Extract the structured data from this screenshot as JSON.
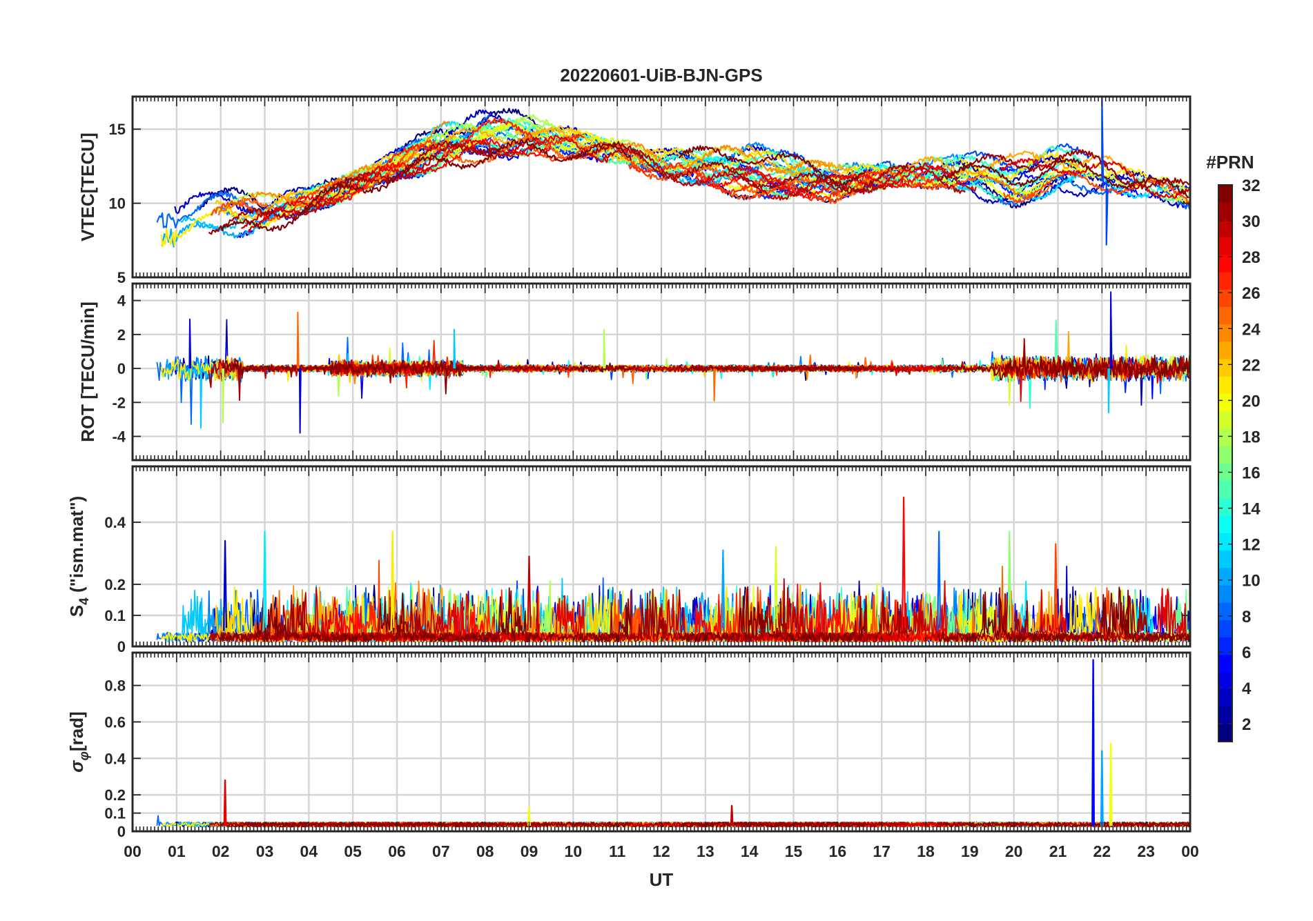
{
  "figure": {
    "title": "20220601-UiB-BJN-GPS",
    "xlabel": "UT",
    "x_ticks": [
      "00",
      "01",
      "02",
      "03",
      "04",
      "05",
      "06",
      "07",
      "08",
      "09",
      "10",
      "11",
      "12",
      "13",
      "14",
      "15",
      "16",
      "17",
      "18",
      "19",
      "20",
      "21",
      "22",
      "23",
      "00"
    ]
  },
  "colorbar": {
    "label": "#PRN",
    "ticks": [
      2,
      4,
      6,
      8,
      10,
      12,
      14,
      16,
      18,
      20,
      22,
      24,
      26,
      28,
      30,
      32
    ],
    "range": [
      1,
      32
    ],
    "colormap": "jet"
  },
  "chart_data": [
    {
      "type": "line",
      "id": "vtec",
      "ylabel": "VTEC[TECU]",
      "ylim": [
        5,
        17.2
      ],
      "yticks": [
        5,
        10,
        15
      ],
      "xlim": [
        0,
        24
      ],
      "grid": true,
      "series_summary": [
        {
          "x": 0,
          "y": 8.5
        },
        {
          "x": 1,
          "y": 8.5
        },
        {
          "x": 2,
          "y": 9.2
        },
        {
          "x": 3,
          "y": 9.2
        },
        {
          "x": 4,
          "y": 10.2
        },
        {
          "x": 5,
          "y": 11.2
        },
        {
          "x": 6,
          "y": 12.5
        },
        {
          "x": 7,
          "y": 13.8
        },
        {
          "x": 8,
          "y": 14.5
        },
        {
          "x": 9,
          "y": 14.6
        },
        {
          "x": 10,
          "y": 14.0
        },
        {
          "x": 11,
          "y": 13.5
        },
        {
          "x": 12,
          "y": 12.6
        },
        {
          "x": 13,
          "y": 12.3
        },
        {
          "x": 14,
          "y": 12.2
        },
        {
          "x": 15,
          "y": 11.6
        },
        {
          "x": 16,
          "y": 11.4
        },
        {
          "x": 17,
          "y": 11.8
        },
        {
          "x": 18,
          "y": 12.1
        },
        {
          "x": 19,
          "y": 11.9
        },
        {
          "x": 20,
          "y": 11.6
        },
        {
          "x": 21,
          "y": 12.2
        },
        {
          "x": 22,
          "y": 12.0
        },
        {
          "x": 23,
          "y": 11.2
        },
        {
          "x": 24,
          "y": 10.5
        }
      ],
      "notable": [
        {
          "x": 22.0,
          "y": 17.2
        },
        {
          "x": 22.1,
          "y": 7.2
        }
      ]
    },
    {
      "type": "line",
      "id": "rot",
      "ylabel": "ROT [TECU/min]",
      "ylim": [
        -5.4,
        5.0
      ],
      "yticks": [
        -4,
        -2,
        0,
        2,
        4
      ],
      "xlim": [
        0,
        24
      ],
      "grid": true,
      "notable": [
        {
          "x": 1.3,
          "y": 2.9
        },
        {
          "x": 1.55,
          "y": -3.5
        },
        {
          "x": 2.05,
          "y": -3.2
        },
        {
          "x": 3.75,
          "y": 3.3
        },
        {
          "x": 3.8,
          "y": -3.8
        },
        {
          "x": 7.3,
          "y": 2.3
        },
        {
          "x": 10.7,
          "y": 2.3
        },
        {
          "x": 13.2,
          "y": -1.9
        },
        {
          "x": 22.2,
          "y": 4.5
        },
        {
          "x": 22.15,
          "y": -2.6
        }
      ]
    },
    {
      "type": "line",
      "id": "s4",
      "ylabel": "S4 (\"ism.mat\")",
      "ylabel_main": "S",
      "ylabel_sub": "4",
      "ylabel_tail": " (\"ism.mat\")",
      "ylim": [
        0,
        0.58
      ],
      "yticks": [
        0,
        0.1,
        0.2,
        0.4
      ],
      "xlim": [
        0,
        24
      ],
      "grid": true,
      "notable": [
        {
          "x": 2.1,
          "y": 0.34
        },
        {
          "x": 3.0,
          "y": 0.37
        },
        {
          "x": 5.9,
          "y": 0.37
        },
        {
          "x": 9.0,
          "y": 0.29
        },
        {
          "x": 13.4,
          "y": 0.31
        },
        {
          "x": 14.6,
          "y": 0.32
        },
        {
          "x": 17.5,
          "y": 0.48
        },
        {
          "x": 18.3,
          "y": 0.37
        },
        {
          "x": 19.9,
          "y": 0.37
        },
        {
          "x": 20.95,
          "y": 0.33
        }
      ]
    },
    {
      "type": "line",
      "id": "sigma_phi",
      "ylabel": "σφ[rad]",
      "ylabel_main": "σ",
      "ylabel_sub": "φ",
      "ylabel_tail": "[rad]",
      "ylim": [
        0,
        0.98
      ],
      "yticks": [
        0,
        0.1,
        0.2,
        0.4,
        0.6,
        0.8
      ],
      "xlim": [
        0,
        24
      ],
      "grid": true,
      "notable": [
        {
          "x": 2.1,
          "y": 0.28
        },
        {
          "x": 9.0,
          "y": 0.13
        },
        {
          "x": 13.6,
          "y": 0.14
        },
        {
          "x": 21.8,
          "y": 0.94
        },
        {
          "x": 22.0,
          "y": 0.44
        },
        {
          "x": 22.2,
          "y": 0.48
        }
      ]
    }
  ]
}
